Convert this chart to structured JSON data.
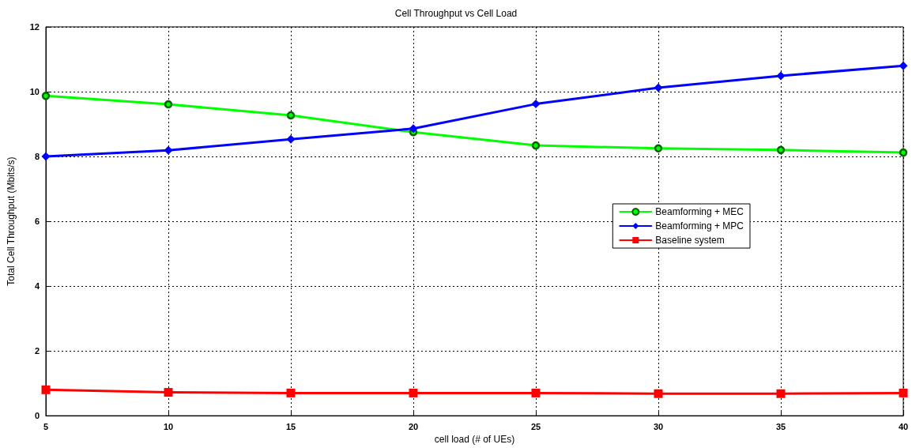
{
  "chart_data": {
    "type": "line",
    "title": "Cell Throughput vs Cell Load",
    "xlabel": "cell load (# of UEs)",
    "ylabel": "Total Cell Throughput (Mbits/s)",
    "x": [
      5,
      10,
      15,
      20,
      25,
      30,
      35,
      40
    ],
    "series": [
      {
        "name": "Beamforming + MEC",
        "color": "#00ff00",
        "marker": "circle",
        "values": [
          9.87,
          9.61,
          9.27,
          8.75,
          8.34,
          8.25,
          8.2,
          8.12
        ]
      },
      {
        "name": "Beamforming + MPC",
        "color": "#0000ff",
        "marker": "diamond",
        "values": [
          8.0,
          8.19,
          8.53,
          8.86,
          9.62,
          10.12,
          10.49,
          10.8
        ]
      },
      {
        "name": "Baseline system",
        "color": "#ff0000",
        "marker": "square",
        "values": [
          0.8,
          0.72,
          0.7,
          0.7,
          0.7,
          0.68,
          0.68,
          0.7
        ]
      }
    ],
    "xlim": [
      5,
      40
    ],
    "xticks": [
      5,
      10,
      15,
      20,
      25,
      30,
      35,
      40
    ],
    "ylim": [
      0,
      12
    ],
    "yticks": [
      0,
      2,
      4,
      6,
      8,
      10,
      12
    ],
    "grid": true,
    "legend": "right",
    "line_style": "solid"
  }
}
